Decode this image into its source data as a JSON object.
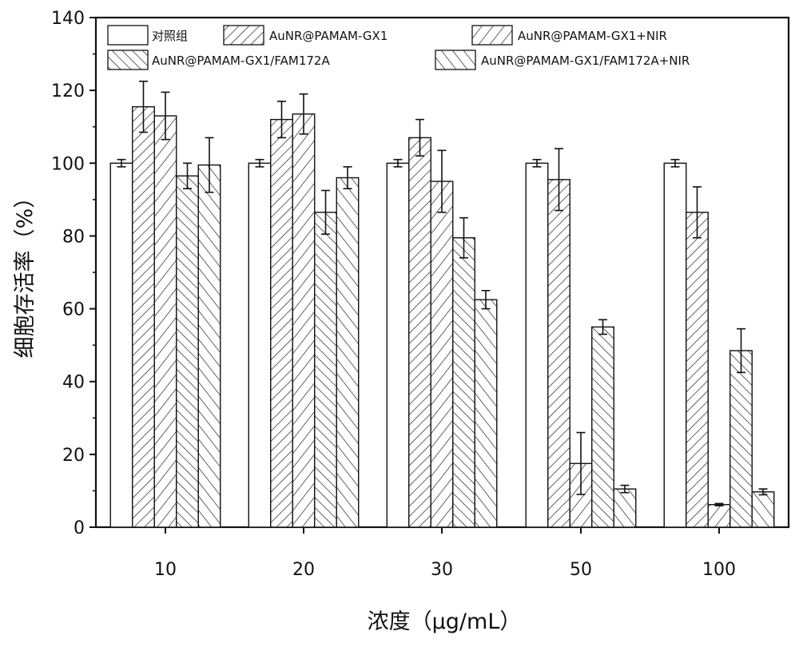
{
  "chart_data": {
    "type": "bar",
    "title": "",
    "xlabel": "浓度（μg/mL）",
    "ylabel": "细胞存活率（%）",
    "categories": [
      "10",
      "20",
      "30",
      "50",
      "100"
    ],
    "ylim": [
      0,
      140
    ],
    "yticks": [
      0,
      20,
      40,
      60,
      80,
      100,
      120,
      140
    ],
    "grid": false,
    "legend_position": "top",
    "series": [
      {
        "name": "对照组",
        "pattern": "none",
        "values": [
          100,
          100,
          100,
          100,
          100
        ],
        "errors": [
          1,
          1,
          1,
          1,
          1
        ]
      },
      {
        "name": "AuNR@PAMAM-GX1",
        "pattern": "diagonal-right",
        "values": [
          115.5,
          112,
          107,
          95.5,
          86.5
        ],
        "errors": [
          7,
          5,
          5,
          8.5,
          7
        ]
      },
      {
        "name": "AuNR@PAMAM-GX1+NIR",
        "pattern": "diagonal-right-wide",
        "values": [
          113,
          113.5,
          95,
          17.5,
          6.2
        ],
        "errors": [
          6.5,
          5.5,
          8.5,
          8.5,
          0.3
        ]
      },
      {
        "name": "AuNR@PAMAM-GX1/FAM172A",
        "pattern": "diagonal-left",
        "values": [
          96.5,
          86.5,
          79.5,
          55,
          48.5
        ],
        "errors": [
          3.5,
          6,
          5.5,
          2,
          6
        ]
      },
      {
        "name": "AuNR@PAMAM-GX1/FAM172A+NIR",
        "pattern": "diagonal-left-wide",
        "values": [
          99.5,
          96,
          62.5,
          10.5,
          9.7
        ],
        "errors": [
          7.5,
          3,
          2.5,
          1,
          0.8
        ]
      }
    ]
  }
}
